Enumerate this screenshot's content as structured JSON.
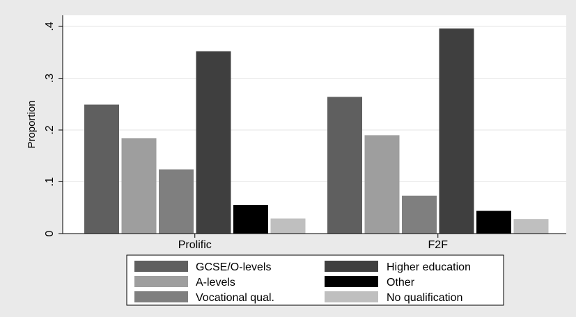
{
  "chart_data": {
    "type": "bar",
    "categories": [
      "Prolific",
      "F2F"
    ],
    "series": [
      {
        "name": "GCSE/O-levels",
        "color": "#5f5f5f",
        "values": [
          0.249,
          0.264
        ]
      },
      {
        "name": "A-levels",
        "color": "#9e9e9e",
        "values": [
          0.184,
          0.19
        ]
      },
      {
        "name": "Vocational qual.",
        "color": "#7f7f7f",
        "values": [
          0.124,
          0.073
        ]
      },
      {
        "name": "Higher education",
        "color": "#3f3f3f",
        "values": [
          0.352,
          0.396
        ]
      },
      {
        "name": "Other",
        "color": "#000000",
        "values": [
          0.055,
          0.044
        ]
      },
      {
        "name": "No qualification",
        "color": "#bfbfbf",
        "values": [
          0.029,
          0.028
        ]
      }
    ],
    "title": "",
    "xlabel": "",
    "ylabel": "Proportion",
    "ylim": [
      0,
      0.4
    ],
    "yticks": [
      0,
      0.1,
      0.2,
      0.3,
      0.4
    ],
    "ytick_labels": [
      "0",
      ".1",
      ".2",
      ".3",
      ".4"
    ],
    "grid": true,
    "legend_position": "bottom",
    "colors": {
      "outer_background": "#eaeaea",
      "plot_background": "#ffffff",
      "grid": "#e6e6e6"
    }
  }
}
